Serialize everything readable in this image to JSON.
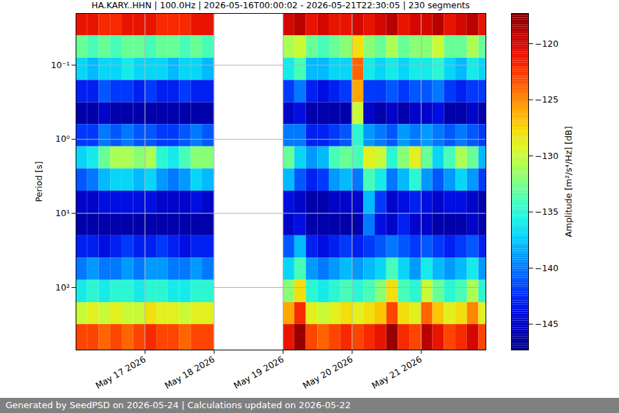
{
  "chart_data": {
    "type": "heatmap",
    "title": "HA.KARY..HHN | 100.0Hz | 2026-05-16T00:00:02 - 2026-05-21T22:30:05 | 230 segments",
    "footer": "Generated by SeedPSD on 2026-05-24 | Calculations updated on 2026-05-22",
    "y_label": "Period [s]",
    "log": "y",
    "grid": true,
    "xlim": [
      "2026-05-16T00:00:02Z",
      "2026-05-21T22:30:05Z"
    ],
    "xticks": [
      {
        "value": "2026-05-17T00:00:00Z",
        "label": "May 17 2026"
      },
      {
        "value": "2026-05-18T00:00:00Z",
        "label": "May 18 2026"
      },
      {
        "value": "2026-05-19T00:00:00Z",
        "label": "May 19 2026"
      },
      {
        "value": "2026-05-20T00:00:00Z",
        "label": "May 20 2026"
      },
      {
        "value": "2026-05-21T00:00:00Z",
        "label": "May 21 2026"
      }
    ],
    "ylim": [
      0.02,
      700
    ],
    "yticks": [
      {
        "value": 0.1,
        "label": "10⁻¹"
      },
      {
        "value": 1,
        "label": "10⁰"
      },
      {
        "value": 10,
        "label": "10¹"
      },
      {
        "value": 100,
        "label": "10²"
      }
    ],
    "time_edges": [
      "2026-05-16T00:00:00Z",
      "2026-05-16T04:00:00Z",
      "2026-05-16T08:00:00Z",
      "2026-05-16T12:00:00Z",
      "2026-05-16T16:00:00Z",
      "2026-05-16T20:00:00Z",
      "2026-05-17T00:00:00Z",
      "2026-05-17T04:00:00Z",
      "2026-05-17T08:00:00Z",
      "2026-05-17T12:00:00Z",
      "2026-05-17T16:00:00Z",
      "2026-05-17T20:00:00Z",
      "2026-05-18T00:00:00Z",
      "2026-05-18T04:00:00Z",
      "2026-05-18T08:00:00Z",
      "2026-05-18T12:00:00Z",
      "2026-05-18T16:00:00Z",
      "2026-05-18T20:00:00Z",
      "2026-05-19T00:00:00Z",
      "2026-05-19T04:00:00Z",
      "2026-05-19T08:00:00Z",
      "2026-05-19T12:00:00Z",
      "2026-05-19T16:00:00Z",
      "2026-05-19T20:00:00Z",
      "2026-05-20T00:00:00Z",
      "2026-05-20T04:00:00Z",
      "2026-05-20T08:00:00Z",
      "2026-05-20T12:00:00Z",
      "2026-05-20T16:00:00Z",
      "2026-05-20T20:00:00Z",
      "2026-05-21T00:00:00Z",
      "2026-05-21T04:00:00Z",
      "2026-05-21T08:00:00Z",
      "2026-05-21T12:00:00Z",
      "2026-05-21T16:00:00Z",
      "2026-05-21T20:00:00Z",
      "2026-05-21T22:30:05Z"
    ],
    "period_edges": [
      0.02,
      0.04,
      0.08,
      0.16,
      0.32,
      0.63,
      1.26,
      2.5,
      5,
      10,
      20,
      40,
      80,
      160,
      316,
      700
    ],
    "cells": [
      [
        -121,
        -121,
        -122,
        -122,
        -121,
        -121,
        -121,
        -122,
        -122,
        -122,
        -121,
        -121,
        null,
        null,
        null,
        null,
        null,
        null,
        -120,
        -119,
        -121,
        -120,
        -121,
        -121,
        -120,
        -121,
        -120,
        -119,
        -121,
        -120,
        -120,
        -119,
        -121,
        -120,
        -119,
        -121
      ],
      [
        -133,
        -134,
        -133,
        -134,
        -133,
        -133,
        -134,
        -133,
        -133,
        -134,
        -133,
        -134,
        null,
        null,
        null,
        null,
        null,
        null,
        -131,
        -130,
        -133,
        -134,
        -133,
        -132,
        -128,
        -132,
        -133,
        -131,
        -133,
        -132,
        -132,
        -130,
        -133,
        -133,
        -131,
        -133
      ],
      [
        -137,
        -138,
        -137,
        -137,
        -136,
        -137,
        -137,
        -137,
        -138,
        -137,
        -137,
        -138,
        null,
        null,
        null,
        null,
        null,
        null,
        -136,
        -134,
        -138,
        -138,
        -137,
        -137,
        -124,
        -136,
        -137,
        -136,
        -137,
        -136,
        -136,
        -135,
        -137,
        -138,
        -136,
        -137
      ],
      [
        -143,
        -143,
        -141,
        -142,
        -142,
        -143,
        -142,
        -143,
        -143,
        -142,
        -143,
        -143,
        null,
        null,
        null,
        null,
        null,
        null,
        -142,
        -140,
        -143,
        -144,
        -143,
        -142,
        -126,
        -142,
        -142,
        -141,
        -142,
        -141,
        -141,
        -140,
        -142,
        -143,
        -142,
        -142
      ],
      [
        -146,
        -146,
        -145,
        -146,
        -146,
        -146,
        -146,
        -146,
        -146,
        -146,
        -146,
        -146,
        null,
        null,
        null,
        null,
        null,
        null,
        -145,
        -144,
        -146,
        -146,
        -146,
        -146,
        -130,
        -145,
        -146,
        -145,
        -146,
        -145,
        -145,
        -144,
        -146,
        -146,
        -145,
        -146
      ],
      [
        -142,
        -142,
        -140,
        -141,
        -140,
        -141,
        -141,
        -142,
        -142,
        -141,
        -140,
        -141,
        null,
        null,
        null,
        null,
        null,
        null,
        -140,
        -140,
        -143,
        -143,
        -142,
        -141,
        -135,
        -139,
        -140,
        -141,
        -139,
        -140,
        -139,
        -140,
        -141,
        -140,
        -141,
        -142
      ],
      [
        -137,
        -136,
        -133,
        -131,
        -131,
        -132,
        -131,
        -135,
        -136,
        -134,
        -132,
        -132,
        null,
        null,
        null,
        null,
        null,
        null,
        -133,
        -137,
        -139,
        -138,
        -134,
        -133,
        -134,
        -129,
        -130,
        -135,
        -132,
        -129,
        -133,
        -137,
        -134,
        -131,
        -133,
        -138
      ],
      [
        -141,
        -140,
        -138,
        -137,
        -137,
        -138,
        -137,
        -139,
        -140,
        -139,
        -137,
        -138,
        null,
        null,
        null,
        null,
        null,
        null,
        -138,
        -141,
        -143,
        -142,
        -139,
        -138,
        -140,
        -134,
        -136,
        -140,
        -138,
        -135,
        -139,
        -141,
        -139,
        -137,
        -139,
        -142
      ],
      [
        -145,
        -145,
        -144,
        -144,
        -144,
        -144,
        -144,
        -145,
        -145,
        -145,
        -144,
        -145,
        null,
        null,
        null,
        null,
        null,
        null,
        -144,
        -145,
        -146,
        -146,
        -145,
        -145,
        -145,
        -138,
        -142,
        -145,
        -144,
        -143,
        -144,
        -145,
        -144,
        -144,
        -145,
        -146
      ],
      [
        -146,
        -146,
        -146,
        -146,
        -146,
        -146,
        -146,
        -146,
        -146,
        -146,
        -146,
        -146,
        null,
        null,
        null,
        null,
        null,
        null,
        -145,
        -144,
        -146,
        -146,
        -146,
        -146,
        -146,
        -140,
        -144,
        -145,
        -143,
        -145,
        -145,
        -146,
        -146,
        -146,
        -145,
        -146
      ],
      [
        -143,
        -143,
        -144,
        -143,
        -142,
        -143,
        -143,
        -142,
        -143,
        -144,
        -143,
        -143,
        null,
        null,
        null,
        null,
        null,
        null,
        -141,
        -138,
        -143,
        -144,
        -143,
        -142,
        -143,
        -142,
        -141,
        -140,
        -141,
        -142,
        -141,
        -142,
        -143,
        -142,
        -141,
        -143
      ],
      [
        -140,
        -139,
        -140,
        -140,
        -139,
        -140,
        -139,
        -139,
        -140,
        -140,
        -139,
        -140,
        null,
        null,
        null,
        null,
        null,
        null,
        -137,
        -134,
        -139,
        -140,
        -139,
        -138,
        -139,
        -138,
        -137,
        -134,
        -137,
        -139,
        -136,
        -138,
        -139,
        -138,
        -136,
        -139
      ],
      [
        -136,
        -135,
        -136,
        -135,
        -135,
        -136,
        -135,
        -135,
        -136,
        -136,
        -135,
        -135,
        null,
        null,
        null,
        null,
        null,
        null,
        -132,
        -128,
        -135,
        -136,
        -135,
        -134,
        -135,
        -134,
        -132,
        -128,
        -134,
        -135,
        -130,
        -133,
        -135,
        -134,
        -131,
        -135
      ],
      [
        -130,
        -129,
        -130,
        -129,
        -130,
        -130,
        -128,
        -129,
        -129,
        -130,
        -129,
        -129,
        null,
        null,
        null,
        null,
        null,
        null,
        -126,
        -122,
        -129,
        -130,
        -129,
        -128,
        -129,
        -128,
        -127,
        -123,
        -128,
        -129,
        -124,
        -127,
        -129,
        -128,
        -125,
        -129
      ],
      [
        -123,
        -123,
        -124,
        -123,
        -124,
        -123,
        -122,
        -123,
        -123,
        -124,
        -123,
        -123,
        null,
        null,
        null,
        null,
        null,
        null,
        -121,
        -118,
        -123,
        -124,
        -123,
        -122,
        -123,
        -122,
        -121,
        -118,
        -122,
        -123,
        -119,
        -121,
        -123,
        -122,
        -120,
        -123
      ]
    ],
    "colorbar": {
      "label": "Amplitude [m²/s⁴/Hz] [dB]",
      "range": [
        -147.3,
        -117.3
      ],
      "ticks": [
        -145,
        -140,
        -135,
        -130,
        -125,
        -120
      ]
    }
  }
}
